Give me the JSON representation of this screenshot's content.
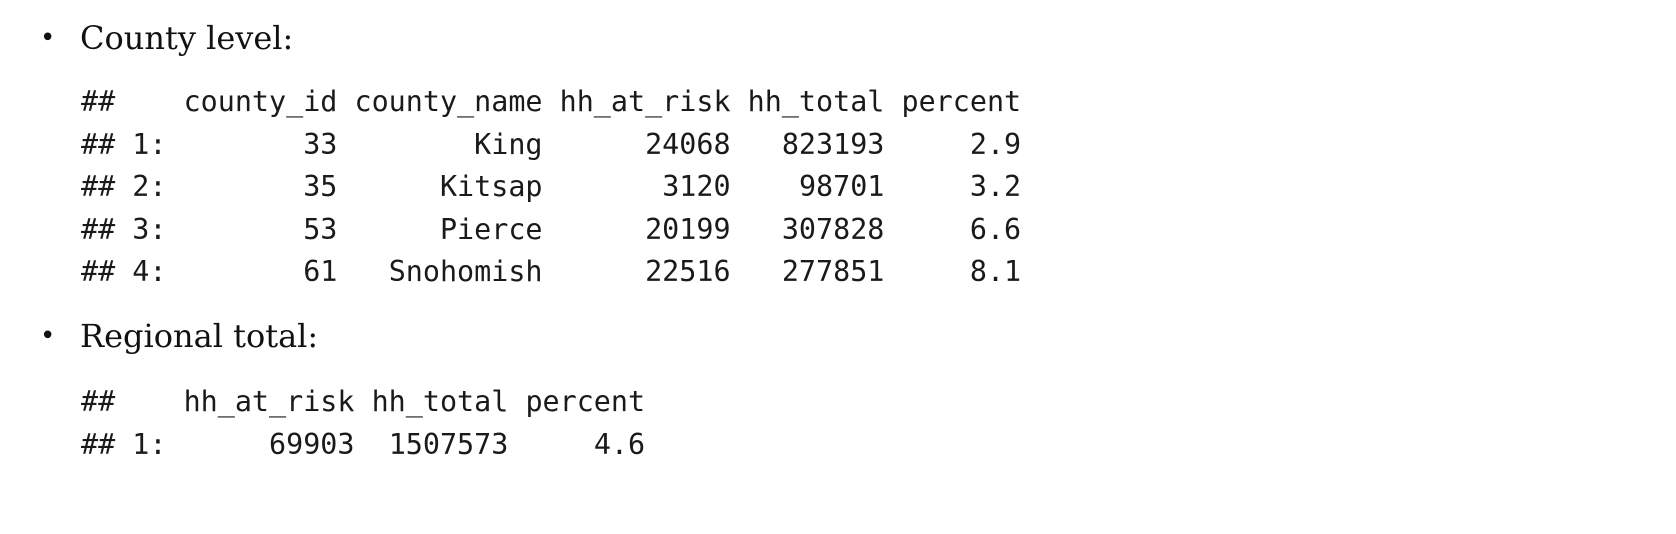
{
  "sections": [
    {
      "label": "County level:",
      "table": {
        "columns": [
          "county_id",
          "county_name",
          "hh_at_risk",
          "hh_total",
          "percent"
        ],
        "align": [
          "right",
          "right",
          "right",
          "right",
          "right"
        ],
        "rows": [
          {
            "index": "## 1:",
            "cells": [
              "33",
              "King",
              "24068",
              "823193",
              "2.9"
            ]
          },
          {
            "index": "## 2:",
            "cells": [
              "35",
              "Kitsap",
              "3120",
              "98701",
              "3.2"
            ]
          },
          {
            "index": "## 3:",
            "cells": [
              "53",
              "Pierce",
              "20199",
              "307828",
              "6.6"
            ]
          },
          {
            "index": "## 4:",
            "cells": [
              "61",
              "Snohomish",
              "22516",
              "277851",
              "8.1"
            ]
          }
        ]
      }
    },
    {
      "label": "Regional total:",
      "table": {
        "columns": [
          "hh_at_risk",
          "hh_total",
          "percent"
        ],
        "align": [
          "right",
          "right",
          "right"
        ],
        "rows": [
          {
            "index": "## 1:",
            "cells": [
              "69903",
              "1507573",
              "4.6"
            ]
          }
        ]
      }
    }
  ],
  "header_prefix": "##",
  "bullet_icon": "bullet-dot-icon"
}
